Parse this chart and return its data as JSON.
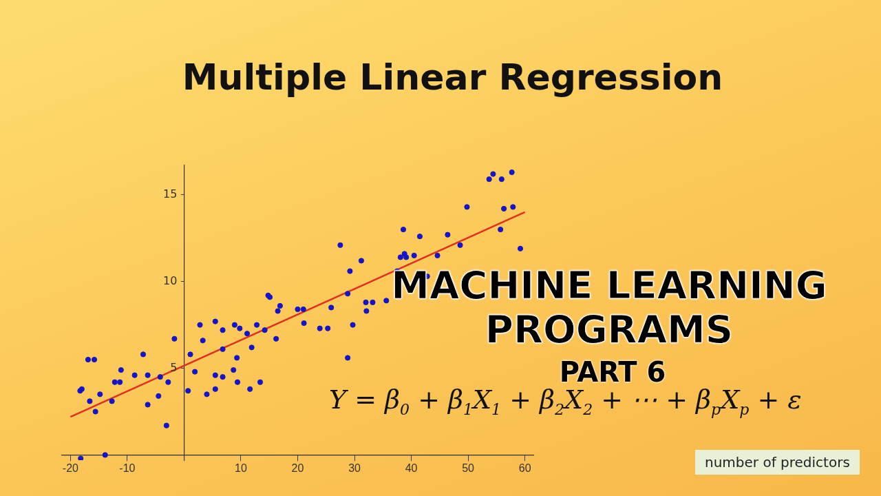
{
  "chart_data": {
    "type": "scatter",
    "title": "Multiple Linear Regression",
    "annotations": [
      "MACHINE LEARNING\nPROGRAMS",
      "PART 6",
      "Y = β$_{0}$ + β$_{1}$X$_{1}$ + β$_{2}$X$_{2}$ + ⋯ + β$_{p}$X$_{p}$ + ε",
      "number of predictors"
    ],
    "series": [
      {
        "type": "scatter",
        "marker": "circle",
        "color": "#1414c8",
        "x": [
          -18.3,
          -18.0,
          -16.9,
          -15.8,
          -16.6,
          -15.6,
          -14.8,
          -13.9,
          -18.2,
          -12.7,
          -12.2,
          -11.3,
          -11.1,
          -8.7,
          -7.2,
          -6.4,
          -6.4,
          -4.5,
          -4.2,
          -3.1,
          -2.8,
          -1.7,
          0.7,
          1.1,
          1.9,
          2.8,
          3.3,
          4.0,
          5.5,
          5.5,
          5.5,
          6.8,
          6.8,
          6.8,
          8.7,
          8.9,
          9.3,
          9.4,
          9.8,
          11.1,
          11.6,
          11.9,
          12.8,
          13.4,
          14.2,
          14.8,
          15.1,
          16.2,
          16.5,
          16.9,
          20.0,
          21.0,
          21.1,
          23.9,
          25.3,
          25.9,
          27.5,
          28.8,
          28.8,
          29.2,
          29.7,
          31.2,
          32.0,
          33.2,
          32.1,
          35.6,
          37.5,
          38.1,
          38.6,
          38.8,
          39.1,
          40.5,
          41.5,
          42.8,
          44.6,
          46.4,
          48.6,
          49.8,
          53.7,
          54.4,
          55.9,
          57.7,
          56.3,
          57.9,
          55.7,
          59.2
        ],
        "values": [
          3.7,
          3.8,
          5.5,
          5.5,
          3.1,
          2.5,
          3.5,
          0.0,
          -0.2,
          3.1,
          4.2,
          4.2,
          4.9,
          4.6,
          5.8,
          4.6,
          2.9,
          3.4,
          4.5,
          1.7,
          4.2,
          6.7,
          3.7,
          5.8,
          4.8,
          7.5,
          6.6,
          3.5,
          7.7,
          4.6,
          3.8,
          7.2,
          4.5,
          6.1,
          4.9,
          7.5,
          5.6,
          4.2,
          7.3,
          7.0,
          3.8,
          6.2,
          7.5,
          4.2,
          7.2,
          9.2,
          9.1,
          6.7,
          8.3,
          8.6,
          8.4,
          8.4,
          7.6,
          7.3,
          7.3,
          8.5,
          12.1,
          9.3,
          5.6,
          10.6,
          7.5,
          11.2,
          8.8,
          8.8,
          8.3,
          8.9,
          10.6,
          11.4,
          13.0,
          11.6,
          11.4,
          11.5,
          12.6,
          10.3,
          11.5,
          12.7,
          12.1,
          14.3,
          15.9,
          16.2,
          15.9,
          16.3,
          14.2,
          14.3,
          13.0,
          11.9
        ]
      },
      {
        "type": "line",
        "marker": "none",
        "color": "#e0301e",
        "x": [
          -20,
          60
        ],
        "values": [
          2.2,
          14.0
        ]
      }
    ],
    "xlim": [
      -21.5,
      61.5
    ],
    "ylim": [
      -0.3,
      16.7
    ],
    "xticks": [
      -20,
      -10,
      10,
      20,
      30,
      40,
      50,
      60
    ],
    "yticks": [
      5,
      10,
      15
    ],
    "grid": false
  }
}
